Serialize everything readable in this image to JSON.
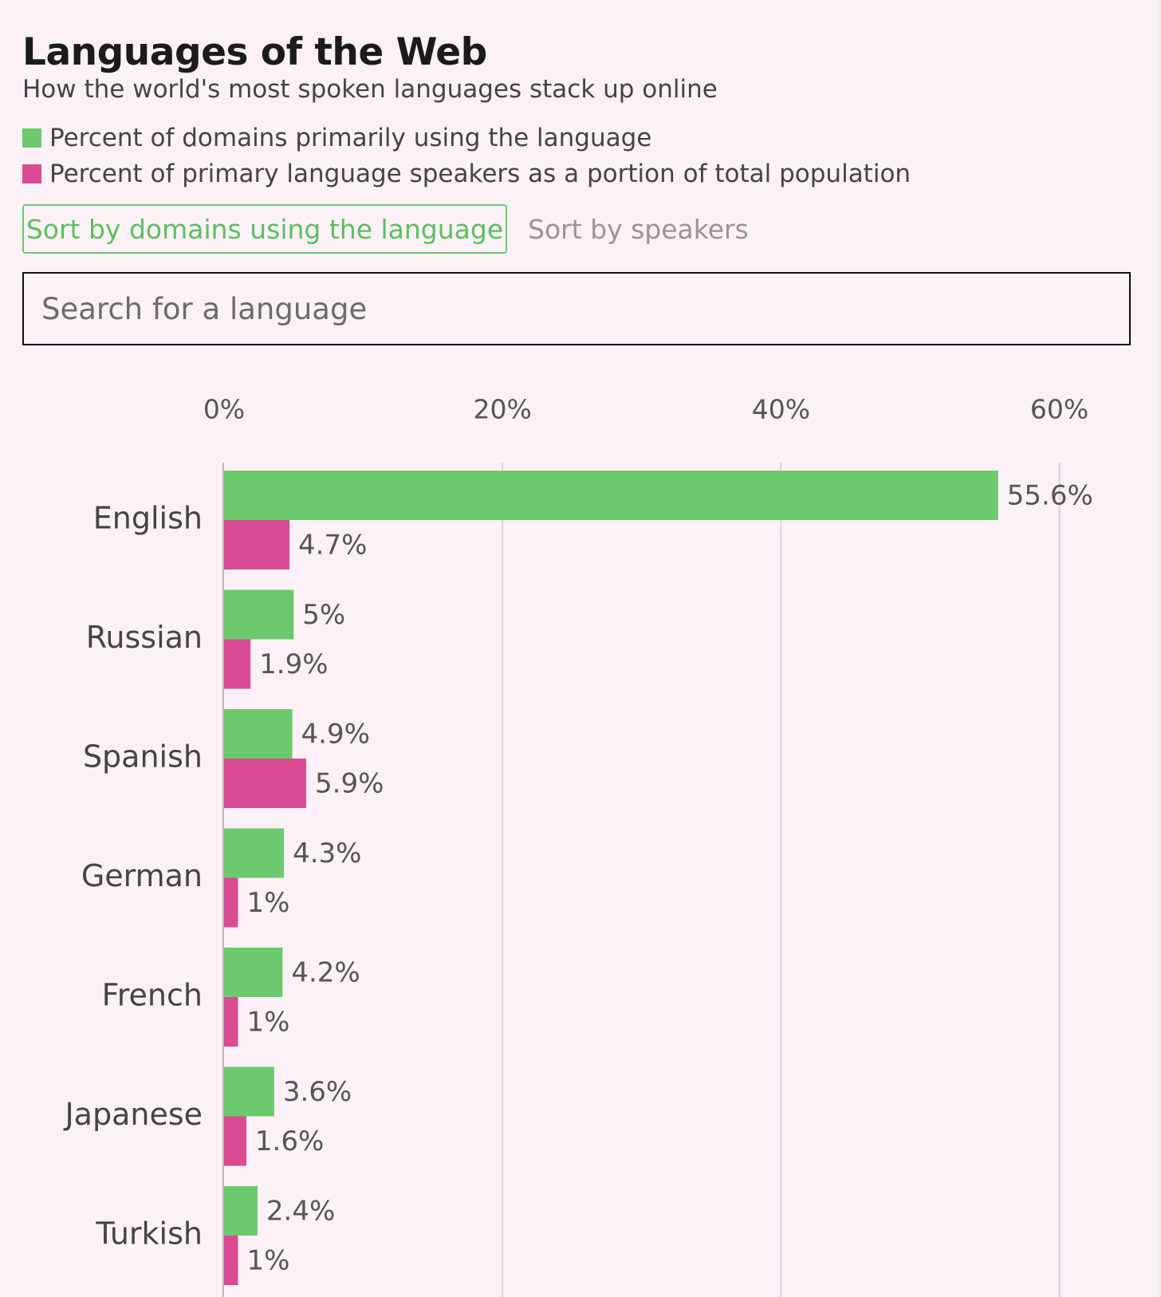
{
  "header": {
    "title": "Languages of the Web",
    "subtitle": "How the world's most spoken languages stack up online"
  },
  "legend": {
    "domains_label": "Percent of domains primarily using the language",
    "speakers_label": "Percent of primary language speakers as a portion of total population",
    "domains_color": "#6cc96d",
    "speakers_color": "#d94b93"
  },
  "controls": {
    "sort_domains_label": "Sort by domains using the language",
    "sort_speakers_label": "Sort by speakers",
    "active_sort": "domains"
  },
  "search": {
    "placeholder": "Search for a language",
    "value": ""
  },
  "chart_data": {
    "type": "bar",
    "orientation": "horizontal",
    "categories": [
      "English",
      "Russian",
      "Spanish",
      "German",
      "French",
      "Japanese",
      "Turkish"
    ],
    "series": [
      {
        "name": "Percent of domains primarily using the language",
        "color": "#6cc96d",
        "values": [
          55.6,
          5,
          4.9,
          4.3,
          4.2,
          3.6,
          2.4
        ],
        "labels": [
          "55.6%",
          "5%",
          "4.9%",
          "4.3%",
          "4.2%",
          "3.6%",
          "2.4%"
        ]
      },
      {
        "name": "Percent of primary language speakers as a portion of total population",
        "color": "#d94b93",
        "values": [
          4.7,
          1.9,
          5.9,
          1,
          1,
          1.6,
          1
        ],
        "labels": [
          "4.7%",
          "1.9%",
          "5.9%",
          "1%",
          "1%",
          "1.6%",
          "1%"
        ]
      }
    ],
    "x_ticks": [
      0,
      20,
      40,
      60
    ],
    "x_tick_labels": [
      "0%",
      "20%",
      "40%",
      "60%"
    ],
    "xlim": [
      0,
      65
    ],
    "grid": true,
    "legend_position": "top"
  }
}
